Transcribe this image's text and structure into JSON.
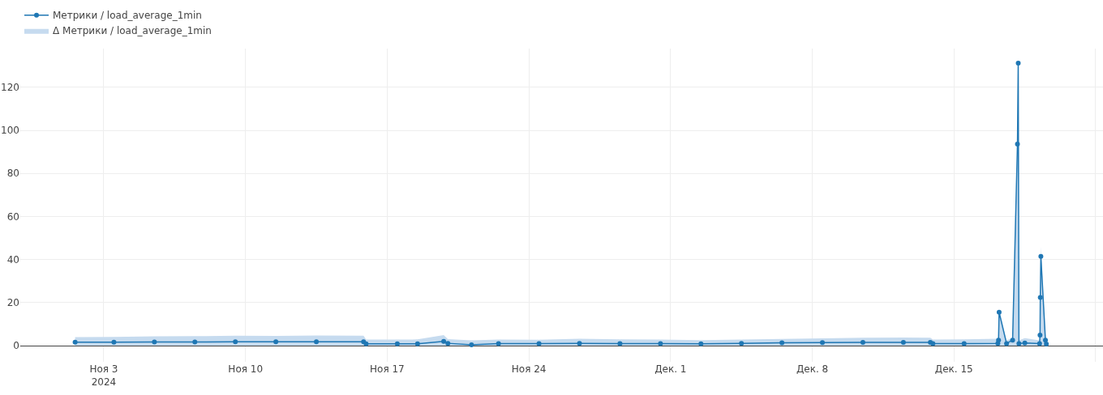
{
  "chart_data": {
    "type": "line",
    "legend": "top left",
    "grid": true,
    "marker": "circle",
    "line_style": "solid",
    "xlim": [
      "2024-10-29T21:00",
      "2024-12-22T08:40"
    ],
    "xticks": [
      {
        "value": "2024-11-03",
        "label": "Ноя 3\n2024"
      },
      {
        "value": "2024-11-10",
        "label": "Ноя 10"
      },
      {
        "value": "2024-11-17",
        "label": "Ноя 17"
      },
      {
        "value": "2024-11-24",
        "label": "Ноя 24"
      },
      {
        "value": "2024-12-01",
        "label": "Дек. 1"
      },
      {
        "value": "2024-12-08",
        "label": "Дек. 8"
      },
      {
        "value": "2024-12-15",
        "label": "Дек. 15"
      },
      {
        "value": "2024-12-22",
        "label": null
      }
    ],
    "ylim": [
      -7.5,
      138
    ],
    "yticks": [
      0,
      20,
      40,
      60,
      80,
      100,
      120
    ],
    "series": [
      {
        "name": "Метрики / load_average_1min",
        "color": "#1f77b4",
        "x": [
          "2024-11-01T14:00",
          "2024-11-03T12:00",
          "2024-11-05T12:00",
          "2024-11-07T12:00",
          "2024-11-09T12:00",
          "2024-11-11T12:00",
          "2024-11-13T12:00",
          "2024-11-15T20:00",
          "2024-11-15T23:00",
          "2024-11-17T12:00",
          "2024-11-18T12:00",
          "2024-11-19T19:00",
          "2024-11-20T00:00",
          "2024-11-21T04:00",
          "2024-11-22T12:00",
          "2024-11-24T12:00",
          "2024-11-26T12:00",
          "2024-11-28T12:00",
          "2024-11-30T12:00",
          "2024-12-02T12:00",
          "2024-12-04T12:00",
          "2024-12-06T12:00",
          "2024-12-08T12:00",
          "2024-12-10T12:00",
          "2024-12-12T12:00",
          "2024-12-13T20:00",
          "2024-12-13T23:00",
          "2024-12-15T12:00",
          "2024-12-17T04:00",
          "2024-12-17T04:50",
          "2024-12-17T05:30",
          "2024-12-17T14:20",
          "2024-12-17T21:30",
          "2024-12-18T03:15",
          "2024-12-18T04:10",
          "2024-12-18T05:00",
          "2024-12-18T12:00",
          "2024-12-19T05:30",
          "2024-12-19T06:00",
          "2024-12-19T06:20",
          "2024-12-19T07:00",
          "2024-12-19T12:25",
          "2024-12-19T13:30"
        ],
        "values": [
          1.6,
          1.6,
          1.7,
          1.7,
          1.8,
          1.8,
          1.8,
          1.8,
          0.9,
          0.9,
          0.9,
          2.0,
          1.1,
          0.4,
          1.0,
          1.0,
          1.1,
          1.0,
          1.0,
          0.9,
          1.1,
          1.3,
          1.4,
          1.5,
          1.5,
          1.5,
          1.0,
          1.0,
          1.1,
          2.6,
          15.5,
          1.0,
          2.6,
          93.6,
          131.2,
          1.0,
          1.2,
          1.0,
          4.9,
          22.4,
          41.5,
          2.6,
          0.8
        ]
      },
      {
        "name": "Δ Метрики / load_average_1min",
        "type": "area",
        "marker": "none",
        "color": "#c6dbef",
        "x": [
          "2024-11-01T14:00",
          "2024-11-03T12:00",
          "2024-11-05T12:00",
          "2024-11-07T12:00",
          "2024-11-09T12:00",
          "2024-11-11T12:00",
          "2024-11-13T12:00",
          "2024-11-15T20:00",
          "2024-11-15T23:00",
          "2024-11-17T12:00",
          "2024-11-18T12:00",
          "2024-11-19T19:00",
          "2024-11-20T00:00",
          "2024-11-21T04:00",
          "2024-11-22T12:00",
          "2024-11-24T12:00",
          "2024-11-26T12:00",
          "2024-11-28T12:00",
          "2024-11-30T12:00",
          "2024-12-02T12:00",
          "2024-12-04T12:00",
          "2024-12-06T12:00",
          "2024-12-08T12:00",
          "2024-12-10T12:00",
          "2024-12-12T12:00",
          "2024-12-13T20:00",
          "2024-12-13T23:00",
          "2024-12-15T12:00",
          "2024-12-17T04:00",
          "2024-12-17T04:50",
          "2024-12-17T05:30",
          "2024-12-17T14:20",
          "2024-12-17T21:30",
          "2024-12-18T03:15",
          "2024-12-18T04:10",
          "2024-12-18T05:00",
          "2024-12-18T12:00",
          "2024-12-19T05:30",
          "2024-12-19T06:00",
          "2024-12-19T06:20",
          "2024-12-19T07:00",
          "2024-12-19T12:25",
          "2024-12-19T13:30"
        ],
        "values": [
          4.0,
          4.1,
          4.3,
          4.4,
          4.6,
          4.5,
          4.7,
          4.6,
          2.8,
          2.8,
          2.9,
          4.9,
          3.0,
          2.5,
          2.8,
          2.7,
          3.2,
          2.9,
          2.8,
          2.6,
          2.8,
          3.1,
          3.4,
          3.7,
          3.8,
          3.7,
          2.8,
          2.9,
          3.2,
          3.5,
          17,
          2.5,
          3.5,
          95,
          132,
          2.5,
          3.5,
          2.5,
          6,
          25,
          46,
          3.5,
          2
        ]
      }
    ]
  }
}
